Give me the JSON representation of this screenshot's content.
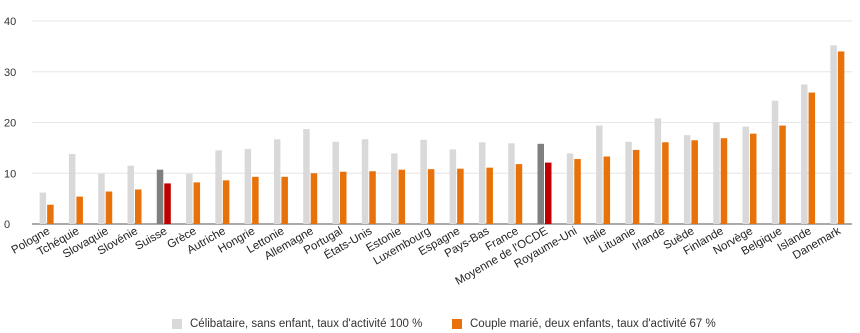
{
  "chart_data": {
    "type": "bar",
    "title": "",
    "xlabel": "",
    "ylabel": "",
    "ylim": [
      0,
      40
    ],
    "yticks": [
      0,
      10,
      20,
      30,
      40
    ],
    "grid": true,
    "legend_position": "bottom",
    "categories": [
      "Pologne",
      "Tchéquie",
      "Slovaquie",
      "Slovénie",
      "Suisse",
      "Grèce",
      "Autriche",
      "Hongrie",
      "Lettonie",
      "Allemagne",
      "Portugal",
      "États-Unis",
      "Estonie",
      "Luxembourg",
      "Espagne",
      "Pays-Bas",
      "France",
      "Moyenne de l'OCDE",
      "Royaume-Uni",
      "Italie",
      "Lituanie",
      "Irlande",
      "Suède",
      "Finlande",
      "Norvège",
      "Belgique",
      "Islande",
      "Danemark"
    ],
    "series": [
      {
        "name": "Célibataire, sans enfant, taux d'activité 100 %",
        "color": "#d9d9d9",
        "values": [
          6.2,
          13.8,
          9.9,
          11.5,
          10.7,
          9.9,
          14.5,
          14.8,
          16.7,
          18.7,
          16.2,
          16.7,
          13.9,
          16.6,
          14.7,
          16.1,
          15.9,
          15.8,
          13.9,
          19.4,
          16.2,
          20.8,
          17.5,
          20.0,
          19.2,
          24.3,
          27.5,
          35.2
        ]
      },
      {
        "name": "Couple marié, deux enfants, taux d'activité 67 %",
        "color": "#e8710a",
        "values": [
          3.8,
          5.4,
          6.4,
          6.8,
          8.0,
          8.2,
          8.6,
          9.3,
          9.3,
          10.0,
          10.3,
          10.4,
          10.7,
          10.8,
          10.9,
          11.1,
          11.8,
          12.1,
          12.8,
          13.3,
          14.6,
          16.1,
          16.5,
          16.9,
          17.8,
          19.4,
          25.9,
          34.0
        ]
      }
    ],
    "highlights": [
      {
        "category": "Suisse",
        "colors": [
          "#7f7f7f",
          "#c00000"
        ]
      },
      {
        "category": "Moyenne de l'OCDE",
        "colors": [
          "#7f7f7f",
          "#c00000"
        ]
      }
    ]
  },
  "legend": {
    "items": [
      {
        "label": "Célibataire, sans enfant, taux d'activité 100 %",
        "color": "#d9d9d9"
      },
      {
        "label": "Couple marié, deux enfants, taux d'activité 67 %",
        "color": "#e8710a"
      }
    ]
  }
}
